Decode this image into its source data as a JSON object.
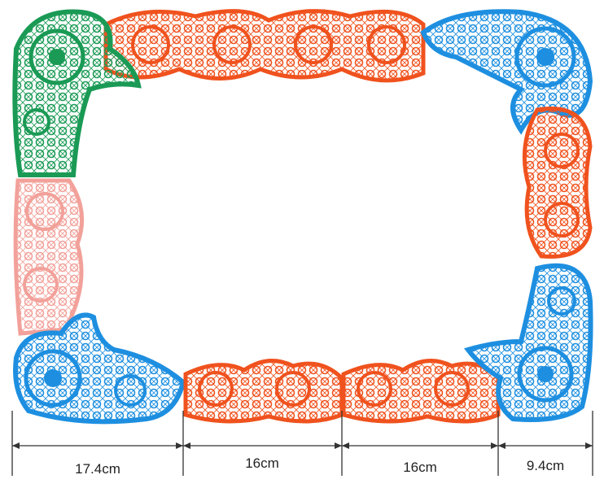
{
  "dimensions": [
    "17.4cm",
    "16cm",
    "16cm",
    "9.4cm"
  ]
}
